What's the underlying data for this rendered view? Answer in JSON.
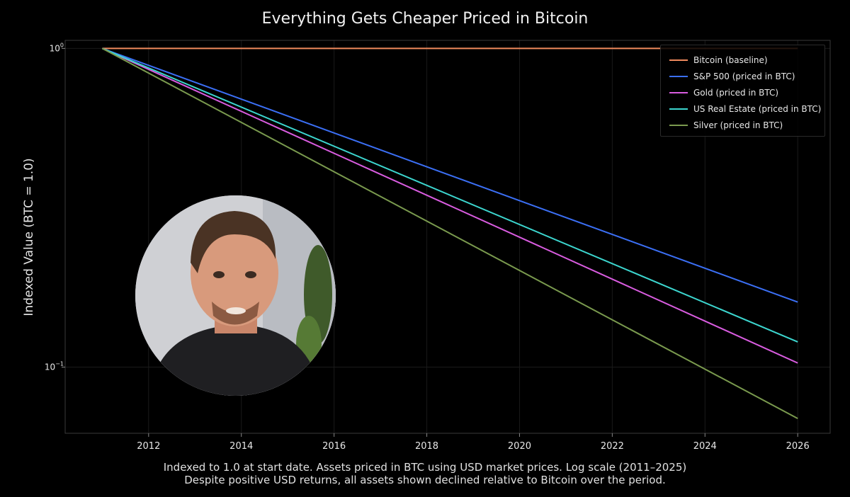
{
  "chart_data": {
    "type": "line",
    "title": "Everything Gets Cheaper Priced in Bitcoin",
    "ylabel": "Indexed Value (BTC = 1.0)",
    "xlabel": "",
    "yscale": "log",
    "ylim": [
      0.062,
      1.06
    ],
    "xlim": [
      2010.2,
      2026.7
    ],
    "xticks": [
      "2012",
      "2014",
      "2016",
      "2018",
      "2020",
      "2022",
      "2024",
      "2026"
    ],
    "yticks": [
      {
        "value": 1,
        "base": "10",
        "exp": "0"
      },
      {
        "value": 0.1,
        "base": "10",
        "exp": "−1"
      }
    ],
    "grid": true,
    "legend_position": "top-right",
    "series": [
      {
        "name": "Bitcoin (baseline)",
        "color": "#f08a5d",
        "x": [
          2011,
          2026
        ],
        "y": [
          1.0,
          1.0
        ]
      },
      {
        "name": "S&P 500 (priced in BTC)",
        "color": "#3b6ff5",
        "x": [
          2011,
          2026
        ],
        "y": [
          1.0,
          0.16
        ]
      },
      {
        "name": "Gold (priced in BTC)",
        "color": "#d95ce0",
        "x": [
          2011,
          2026
        ],
        "y": [
          1.0,
          0.103
        ]
      },
      {
        "name": "US Real Estate (priced in BTC)",
        "color": "#3cd6cf",
        "x": [
          2011,
          2026
        ],
        "y": [
          1.0,
          0.12
        ]
      },
      {
        "name": "Silver (priced in BTC)",
        "color": "#7a9a4e",
        "x": [
          2011,
          2026
        ],
        "y": [
          1.0,
          0.069
        ]
      }
    ],
    "annotations": {
      "caption_line1": "Indexed to 1.0 at start date. Assets priced in BTC using USD market prices. Log scale (2011–2025)",
      "caption_line2": "Despite positive USD returns, all assets shown declined relative to Bitcoin over the period."
    }
  },
  "colors": {
    "background": "#000000",
    "axes_frame": "#3a3a3a",
    "grid": "#1a1a1a",
    "text": "#e8e8e8"
  }
}
